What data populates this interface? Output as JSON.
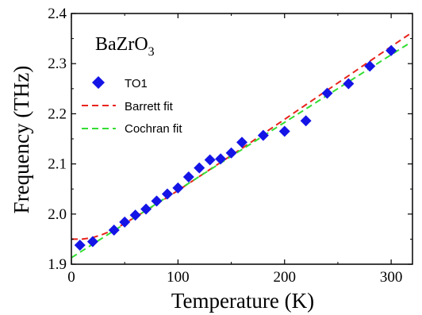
{
  "chart_data": {
    "type": "scatter",
    "title": "",
    "annotation": {
      "main": "BaZrO",
      "subscript": "3"
    },
    "xlabel": "Temperature (K)",
    "ylabel": "Frequency (THz)",
    "xlim": [
      0,
      320
    ],
    "ylim": [
      1.9,
      2.4
    ],
    "xticks": [
      0,
      100,
      200,
      300
    ],
    "yticks": [
      1.9,
      2.0,
      2.1,
      2.2,
      2.3,
      2.4
    ],
    "ytick_labels": [
      "1.9",
      "2.0",
      "2.1",
      "2.2",
      "2.3",
      "2.4"
    ],
    "grid": false,
    "legend_position": "upper-left",
    "series": [
      {
        "name": "TO1",
        "kind": "scatter",
        "marker": "diamond",
        "color": "#1414e6",
        "x": [
          8,
          20,
          40,
          50,
          60,
          70,
          80,
          90,
          100,
          110,
          120,
          130,
          140,
          150,
          160,
          180,
          200,
          220,
          240,
          260,
          280,
          300
        ],
        "y": [
          1.938,
          1.945,
          1.968,
          1.984,
          1.998,
          2.01,
          2.026,
          2.04,
          2.052,
          2.074,
          2.092,
          2.108,
          2.11,
          2.122,
          2.143,
          2.157,
          2.165,
          2.186,
          2.241,
          2.26,
          2.295,
          2.326
        ]
      },
      {
        "name": "Barrett fit",
        "kind": "line",
        "dash": "dashed",
        "color": "#e8231c",
        "x": [
          0,
          10,
          20,
          30,
          40,
          60,
          80,
          100,
          120,
          140,
          160,
          180,
          200,
          220,
          240,
          260,
          280,
          300,
          318
        ],
        "y": [
          1.95,
          1.95,
          1.953,
          1.96,
          1.969,
          1.994,
          2.02,
          2.047,
          2.075,
          2.103,
          2.131,
          2.16,
          2.189,
          2.218,
          2.247,
          2.276,
          2.305,
          2.334,
          2.36
        ]
      },
      {
        "name": "Cochran fit",
        "kind": "line",
        "dash": "dashed",
        "color": "#33dd33",
        "x": [
          0,
          318
        ],
        "y": [
          1.913,
          2.342
        ]
      }
    ]
  }
}
